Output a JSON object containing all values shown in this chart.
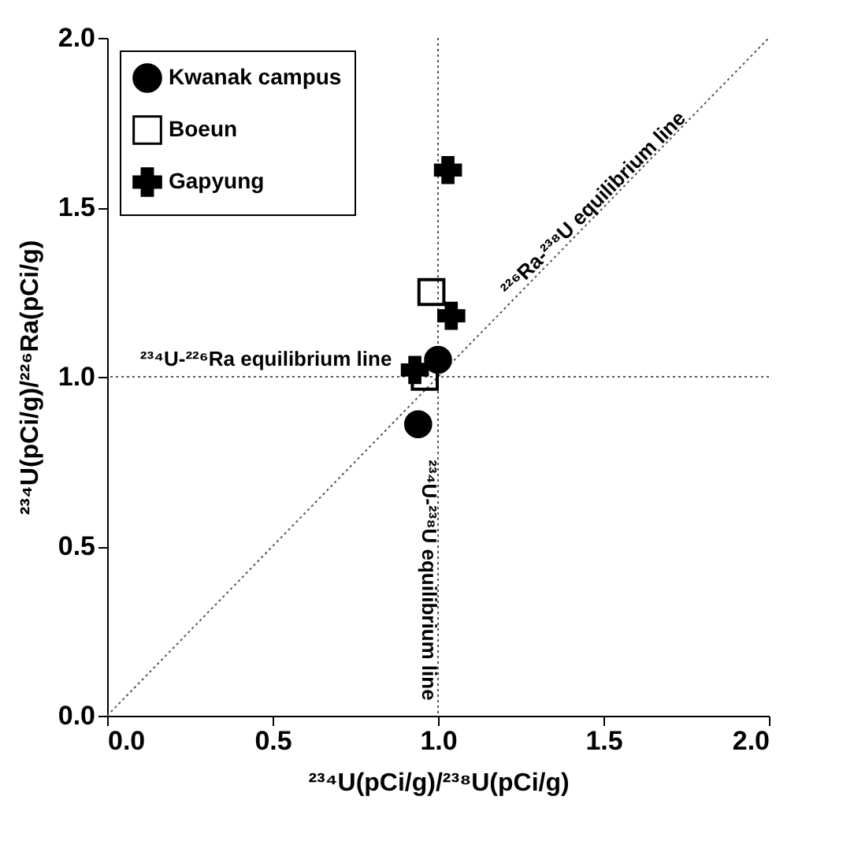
{
  "chart_data": {
    "type": "scatter",
    "xlabel": "²³⁴U(pCi/g)/²³⁸U(pCi/g)",
    "ylabel": "²³⁴U(pCi/g)/²²⁶Ra(pCi/g)",
    "xlim": [
      0,
      2
    ],
    "ylim": [
      0,
      2
    ],
    "xticks": [
      {
        "value": 0,
        "label": "0.0"
      },
      {
        "value": 0.5,
        "label": "0.5"
      },
      {
        "value": 1,
        "label": "1.0"
      },
      {
        "value": 1.5,
        "label": "1.5"
      },
      {
        "value": 2,
        "label": "2.0"
      }
    ],
    "yticks": [
      {
        "value": 0,
        "label": "0.0"
      },
      {
        "value": 0.5,
        "label": "0.5"
      },
      {
        "value": 1,
        "label": "1.0"
      },
      {
        "value": 1.5,
        "label": "1.5"
      },
      {
        "value": 2,
        "label": "2.0"
      }
    ],
    "series": [
      {
        "name": "Kwanak campus",
        "color": "#000000",
        "marker": "circle",
        "x": [
          0.94,
          1.0
        ],
        "values": [
          0.86,
          1.05
        ]
      },
      {
        "name": "Boeun",
        "color": "#000000",
        "marker": "square",
        "x": [
          0.98,
          0.96
        ],
        "values": [
          1.25,
          1.0
        ]
      },
      {
        "name": "Gapyung",
        "color": "#000000",
        "marker": "cross",
        "x": [
          1.04,
          0.93,
          1.03
        ],
        "values": [
          1.18,
          1.02,
          1.61
        ]
      },
      {
        "type": "line",
        "color": "#555555",
        "line_style": "dotted",
        "x": [
          0,
          2
        ],
        "values": [
          0,
          2
        ]
      }
    ],
    "ref_lines": [
      {
        "axis": "y",
        "value": 1,
        "label": "²³⁴U-²²⁶Ra equilibrium line",
        "color": "#555555",
        "line_style": "dotted"
      },
      {
        "axis": "x",
        "value": 1,
        "label": "²³⁴U-²³⁸U equilibrium line",
        "color": "#555555",
        "line_style": "dotted"
      }
    ],
    "annotations": [
      {
        "text": "²²⁶Ra-²³⁸U equilibrium line",
        "x": 1.47,
        "y": 1.51
      }
    ],
    "legend": "top left",
    "grid": false
  }
}
